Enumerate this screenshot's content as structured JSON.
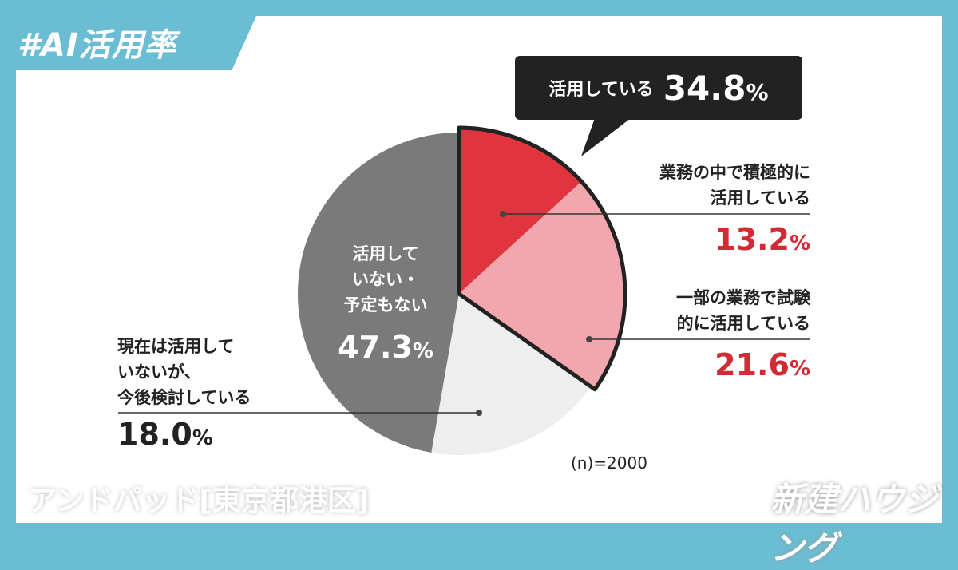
{
  "header": {
    "title": "#AI活用率"
  },
  "callout": {
    "label": "活用している",
    "value": "34.8",
    "unit": "%"
  },
  "note": "(n)=2000",
  "watermarks": {
    "left": "アンドパッド[東京都港区]",
    "right": "新建ハウジング"
  },
  "chart_data": {
    "type": "pie",
    "start": "top, clockwise",
    "slices": [
      {
        "label_lines": [
          "業務の中で積極的に",
          "活用している"
        ],
        "value": 13.2,
        "color": "#e0353f",
        "highlighted": true
      },
      {
        "label_lines": [
          "一部の業務で試験",
          "的に活用している"
        ],
        "value": 21.6,
        "color": "#f2a7ae",
        "highlighted": true
      },
      {
        "label_lines": [
          "現在は活用して",
          "いないが、",
          "今後検討している"
        ],
        "value": 18.0,
        "color": "#eeeeee",
        "highlighted": false
      },
      {
        "label_lines": [
          "活用して",
          "いない・",
          "予定もない"
        ],
        "value": 47.3,
        "color": "#7a7a7a",
        "highlighted": false
      }
    ],
    "group_label": "活用している",
    "group_value": 34.8,
    "label_color_highlight": "#d42a35"
  }
}
